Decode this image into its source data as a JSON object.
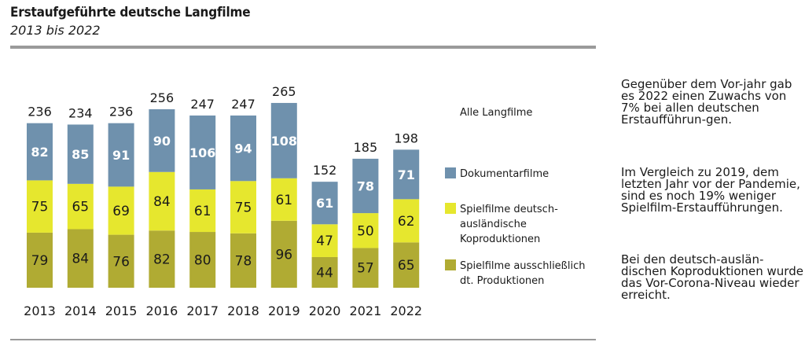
{
  "header": {
    "title": "Erstaufgeführte deutsche Langfilme",
    "subtitle": "2013 bis 2022"
  },
  "legend": {
    "title": "Alle Langfilme",
    "items": [
      {
        "label": "Dokumentarfilme",
        "color": "#6f91ad"
      },
      {
        "label": "Spielfilme deutsch-ausländische Koproduktionen",
        "color": "#e6e72e"
      },
      {
        "label": "Spielfilme ausschließlich dt. Produktionen",
        "color": "#b0ab33"
      }
    ]
  },
  "notes": [
    "Gegenüber dem Vor-jahr gab es 2022 einen Zuwachs von 7% bei allen deutschen Erstaufführun-gen.",
    "Im Vergleich zu 2019, dem letzten Jahr vor der Pandemie, sind es noch 19% weniger Spielfilm-Erstaufführungen.",
    "Bei den deutsch-auslän-dischen Koproduktionen wurde das Vor-Corona-Niveau wieder erreicht."
  ],
  "chart_data": {
    "type": "bar",
    "stacked": true,
    "categories": [
      "2013",
      "2014",
      "2015",
      "2016",
      "2017",
      "2018",
      "2019",
      "2020",
      "2021",
      "2022"
    ],
    "series": [
      {
        "name": "Spielfilme ausschließlich dt. Produktionen",
        "color": "#b0ab33",
        "values": [
          79,
          84,
          76,
          82,
          80,
          78,
          96,
          44,
          57,
          65
        ]
      },
      {
        "name": "Spielfilme deutsch-ausländische Koproduktionen",
        "color": "#e6e72e",
        "values": [
          75,
          65,
          69,
          84,
          61,
          75,
          61,
          47,
          50,
          62
        ]
      },
      {
        "name": "Dokumentarfilme",
        "color": "#6f91ad",
        "values": [
          82,
          85,
          91,
          90,
          106,
          94,
          108,
          61,
          78,
          71
        ]
      }
    ],
    "totals": [
      236,
      234,
      236,
      256,
      247,
      247,
      265,
      152,
      185,
      198
    ],
    "legend_position": "right",
    "grid": false
  }
}
